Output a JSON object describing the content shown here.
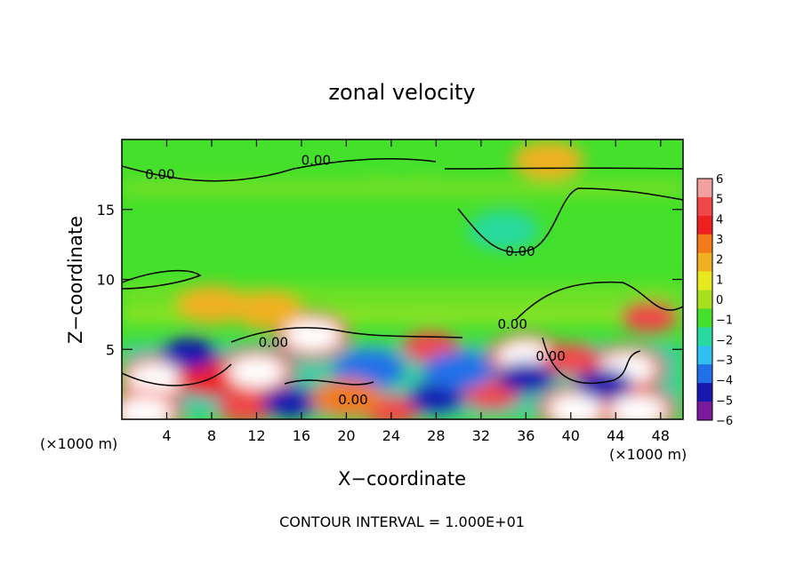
{
  "chart_data": {
    "type": "heatmap",
    "title": "zonal velocity",
    "xlabel": "X−coordinate",
    "ylabel": "Z−coordinate",
    "x_unit_left": "(×1000 m)",
    "x_unit_right": "(×1000 m)",
    "xlim": [
      0,
      50
    ],
    "ylim": [
      0,
      20
    ],
    "x_ticks": [
      4,
      8,
      12,
      16,
      20,
      24,
      28,
      32,
      36,
      40,
      44,
      48
    ],
    "y_ticks": [
      5,
      10,
      15
    ],
    "colorbar": {
      "min": -6,
      "max": 6,
      "ticks": [
        6,
        5,
        4,
        3,
        2,
        1,
        0,
        -1,
        -2,
        -3,
        -4,
        -5,
        -6
      ],
      "tick_labels": [
        "6",
        "5",
        "4",
        "3",
        "2",
        "1",
        "0",
        "−1",
        "−2",
        "−3",
        "−4",
        "−5",
        "−6"
      ],
      "colors": [
        "#f2a0a0",
        "#f04848",
        "#ee2020",
        "#f27a18",
        "#f0b020",
        "#e8e820",
        "#a8e020",
        "#44e02c",
        "#28d9a0",
        "#30c0f0",
        "#2070e8",
        "#1818b0",
        "#7a1a9a"
      ]
    },
    "contour_labels": [
      {
        "text": "0.00",
        "x": 3.4,
        "y": 17.5
      },
      {
        "text": "0.00",
        "x": 17.3,
        "y": 18.5
      },
      {
        "text": "0.00",
        "x": 35.5,
        "y": 12.0
      },
      {
        "text": "0.00",
        "x": 34.8,
        "y": 6.8
      },
      {
        "text": "0.00",
        "x": 13.5,
        "y": 5.5
      },
      {
        "text": "0.00",
        "x": 20.6,
        "y": 1.4
      },
      {
        "text": "0.00",
        "x": 38.2,
        "y": 4.5
      }
    ],
    "velocity_cells": [
      {
        "x": 3,
        "z": 2.9,
        "v": 7
      },
      {
        "x": 2,
        "z": 0.5,
        "v": 7
      },
      {
        "x": 8,
        "z": 3.0,
        "v": 4
      },
      {
        "x": 12,
        "z": 3.4,
        "v": 7
      },
      {
        "x": 11,
        "z": 0.8,
        "v": 5
      },
      {
        "x": 17,
        "z": 6.0,
        "v": 7
      },
      {
        "x": 15,
        "z": 1.2,
        "v": -5
      },
      {
        "x": 22,
        "z": 3.6,
        "v": -4
      },
      {
        "x": 24,
        "z": 0.6,
        "v": 5
      },
      {
        "x": 27.5,
        "z": 5.2,
        "v": 5
      },
      {
        "x": 28,
        "z": 1.5,
        "v": -5
      },
      {
        "x": 33,
        "z": 1.8,
        "v": 5
      },
      {
        "x": 36,
        "z": 4.5,
        "v": 7
      },
      {
        "x": 40,
        "z": 4.3,
        "v": 5
      },
      {
        "x": 40.5,
        "z": 0.7,
        "v": 7
      },
      {
        "x": 45,
        "z": 3.6,
        "v": 7
      },
      {
        "x": 46,
        "z": 0.6,
        "v": 7
      },
      {
        "x": 47,
        "z": 7.3,
        "v": 5
      },
      {
        "x": 6,
        "z": 4.7,
        "v": -5
      },
      {
        "x": 30,
        "z": 3.5,
        "v": -4
      },
      {
        "x": 36,
        "z": 3.0,
        "v": -5
      },
      {
        "x": 43,
        "z": 2.5,
        "v": -5
      },
      {
        "x": 20,
        "z": 1.5,
        "v": 3
      },
      {
        "x": 13,
        "z": 7.8,
        "v": 2
      },
      {
        "x": 8,
        "z": 8.2,
        "v": 2
      },
      {
        "x": 34,
        "z": 13.5,
        "v": -2
      },
      {
        "x": 25,
        "z": 18.2,
        "v": -1
      },
      {
        "x": 38,
        "z": 18.5,
        "v": 2
      }
    ]
  },
  "footer_text": "CONTOUR INTERVAL = 1.000E+01"
}
